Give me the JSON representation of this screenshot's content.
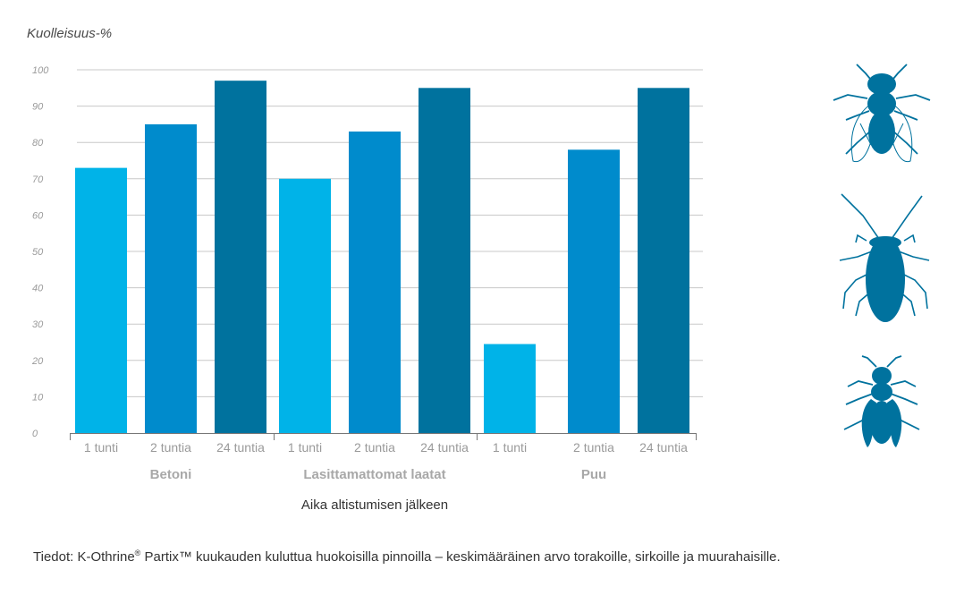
{
  "chart_data": {
    "type": "bar",
    "ylabel": "Kuolleisuus-%",
    "xlabel": "Aika altistumisen jälkeen",
    "ylim": [
      0,
      100
    ],
    "yticks": [
      "0",
      "10",
      "20",
      "30",
      "40",
      "50",
      "60",
      "70",
      "80",
      "90",
      "100"
    ],
    "grid": true,
    "groups": [
      {
        "name": "Betoni",
        "categories": [
          "1 tunti",
          "2 tuntia",
          "24 tuntia"
        ],
        "values": [
          73,
          85,
          97
        ]
      },
      {
        "name": "Lasittamattomat laatat",
        "categories": [
          "1 tunti",
          "2 tuntia",
          "24 tuntia"
        ],
        "values": [
          70,
          83,
          95
        ]
      },
      {
        "name": "Puu",
        "categories": [
          "1 tunti",
          "2 tuntia",
          "24 tuntia"
        ],
        "values": [
          24.5,
          78,
          95
        ]
      }
    ],
    "colors": [
      "#00b3e8",
      "#008bcc",
      "#00729e"
    ]
  },
  "footnote": {
    "prefix": "Tiedot: K-Othrine",
    "reg": "®",
    "rest": " Partix™ kuukauden kuluttua huokoisilla pinnoilla – keskimääräinen arvo torakoille, sirkoille ja muurahaisille."
  },
  "icons": {
    "fly": "fly-icon",
    "cockroach": "cockroach-icon",
    "ant": "ant-icon",
    "color": "#00729e"
  }
}
